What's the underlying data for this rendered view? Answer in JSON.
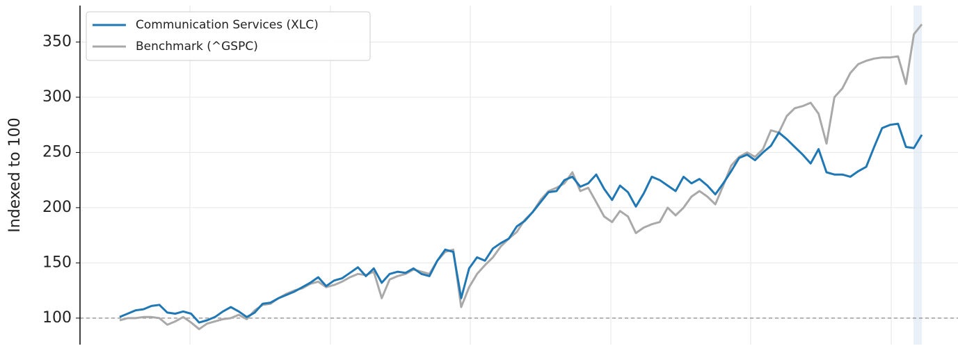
{
  "chart_data": {
    "type": "line",
    "ylabel": "Indexed to 100",
    "ylim": [
      76,
      383
    ],
    "yticks": [
      100,
      150,
      200,
      250,
      300,
      350
    ],
    "grid": true,
    "hline": 100,
    "legend": "upper-left",
    "series": [
      {
        "name": "Communication Services (XLC)",
        "color": "#1f77b4",
        "values": [
          101,
          104,
          107,
          108,
          111,
          112,
          105,
          104,
          106,
          104,
          96,
          98,
          101,
          106,
          110,
          106,
          101,
          105,
          113,
          114,
          118,
          121,
          124,
          128,
          132,
          137,
          129,
          134,
          136,
          141,
          146,
          138,
          145,
          132,
          140,
          142,
          141,
          145,
          140,
          138,
          152,
          162,
          160,
          118,
          145,
          155,
          152,
          163,
          168,
          172,
          183,
          188,
          196,
          205,
          214,
          215,
          225,
          228,
          219,
          222,
          230,
          217,
          207,
          220,
          214,
          201,
          213,
          228,
          225,
          220,
          215,
          228,
          222,
          226,
          220,
          212,
          222,
          233,
          245,
          248,
          243,
          250,
          256,
          268,
          262,
          255,
          248,
          240,
          253,
          232,
          230,
          230,
          228,
          233,
          237,
          255,
          272,
          275,
          276,
          255,
          254,
          266
        ]
      },
      {
        "name": "Benchmark (^GSPC)",
        "color": "#a9a9a9",
        "values": [
          98,
          100,
          100,
          101,
          101,
          100,
          94,
          97,
          101,
          96,
          90,
          95,
          97,
          99,
          100,
          103,
          99,
          107,
          112,
          113,
          118,
          122,
          125,
          127,
          131,
          133,
          128,
          130,
          133,
          137,
          140,
          139,
          142,
          118,
          135,
          138,
          140,
          144,
          142,
          140,
          152,
          160,
          162,
          110,
          128,
          140,
          148,
          155,
          165,
          172,
          178,
          189,
          196,
          207,
          215,
          218,
          222,
          232,
          215,
          218,
          205,
          192,
          187,
          197,
          192,
          177,
          182,
          185,
          187,
          200,
          193,
          200,
          210,
          215,
          210,
          203,
          220,
          238,
          246,
          250,
          246,
          253,
          270,
          268,
          283,
          290,
          292,
          295,
          285,
          258,
          300,
          308,
          322,
          330,
          333,
          335,
          336,
          336,
          337,
          312,
          357,
          366
        ]
      }
    ]
  }
}
